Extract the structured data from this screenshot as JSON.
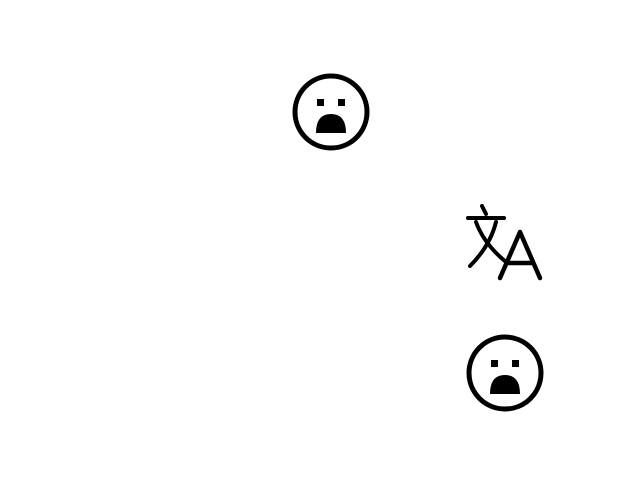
{
  "canvas": {
    "background": "#ffffff"
  },
  "icons": [
    {
      "id": "face-top",
      "name": "frowning-face-icon",
      "color": "#000000"
    },
    {
      "id": "translate",
      "name": "translate-icon",
      "color": "#000000",
      "glyph_text": "文A"
    },
    {
      "id": "face-bottom",
      "name": "frowning-face-icon",
      "color": "#000000"
    }
  ]
}
